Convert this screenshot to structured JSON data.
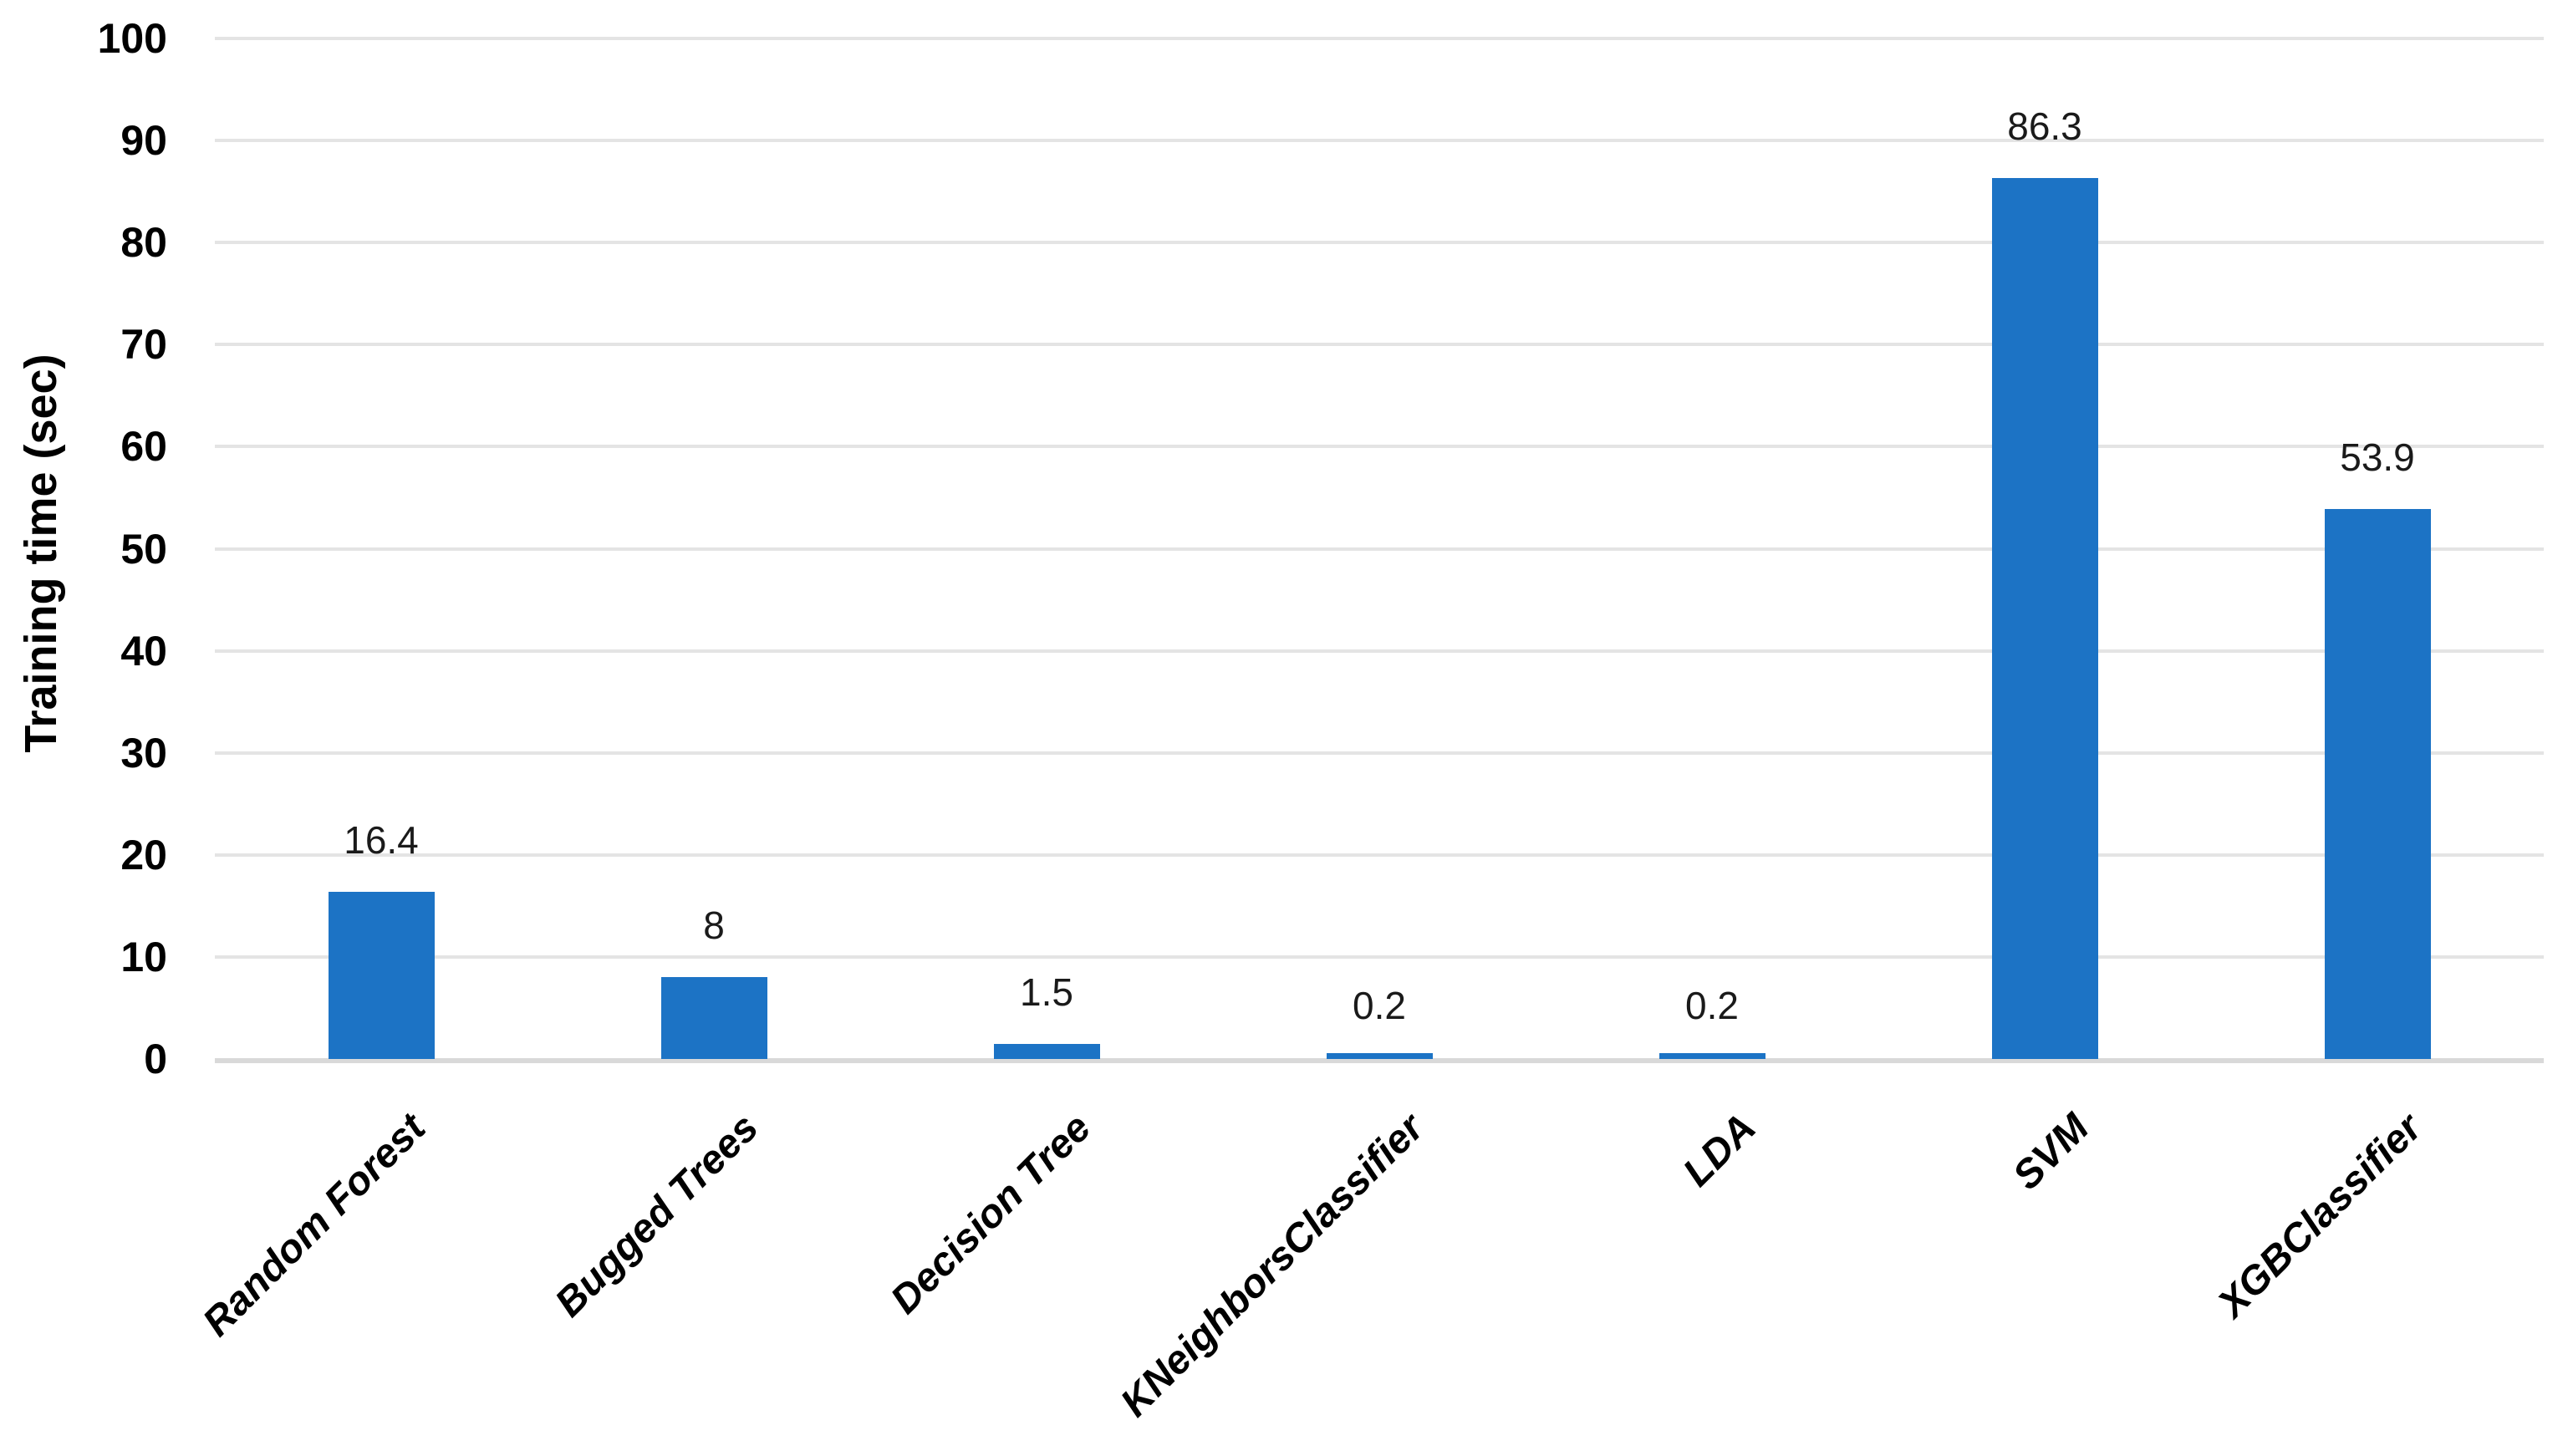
{
  "chart_data": {
    "type": "bar",
    "title": "",
    "xlabel": "",
    "ylabel": "Training time (sec)",
    "categories": [
      "Random Forest",
      "Bugged Trees",
      "Decision Tree",
      "KNeighborsClassifier",
      "LDA",
      "SVM",
      "XGBClassifier"
    ],
    "values": [
      16.4,
      8,
      1.5,
      0.2,
      0.2,
      86.3,
      53.9
    ],
    "value_labels": [
      "16.4",
      "8",
      "1.5",
      "0.2",
      "0.2",
      "86.3",
      "53.9"
    ],
    "yticks": [
      0,
      10,
      20,
      30,
      40,
      50,
      60,
      70,
      80,
      90,
      100
    ],
    "ylim": [
      0,
      100
    ],
    "grid": "horizontal gridlines on",
    "legend_position": "none",
    "colors": {
      "bar": "#1C73C5",
      "gridline": "#E4E4E4",
      "axis_line": "#D9D9D9",
      "tick_label": "#000000",
      "data_label": "#1A1A1A"
    }
  }
}
